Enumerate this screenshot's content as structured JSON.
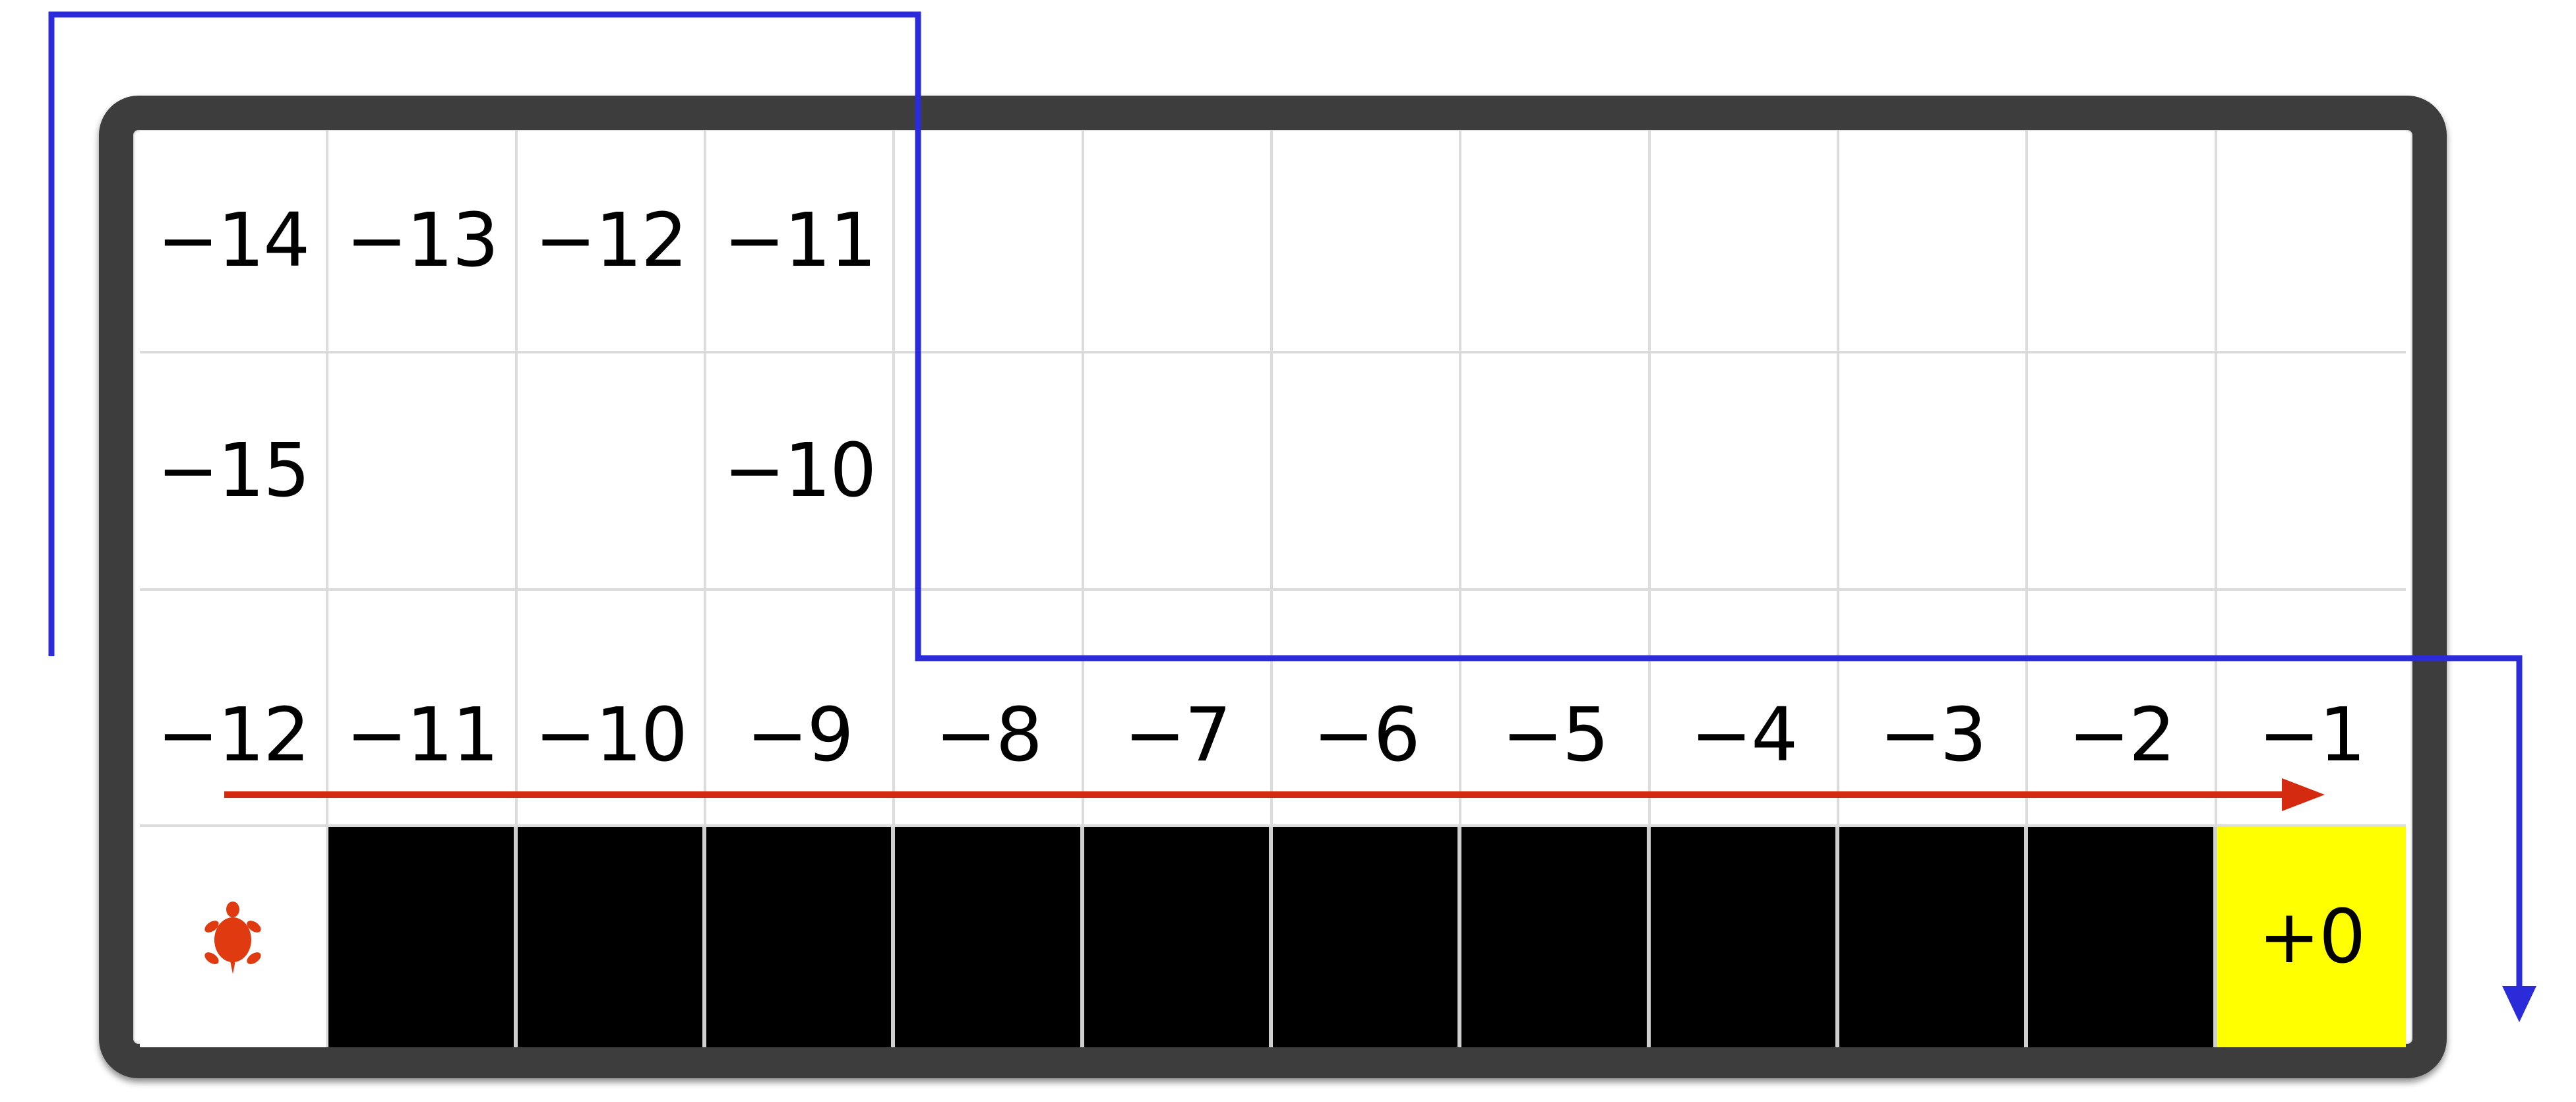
{
  "grid": {
    "row1": [
      "−14",
      "−13",
      "−12",
      "−11",
      "",
      "",
      "",
      "",
      "",
      "",
      "",
      ""
    ],
    "row2": [
      "−15",
      "",
      "",
      "−10",
      "",
      "",
      "",
      "",
      "",
      "",
      "",
      ""
    ],
    "row3": [
      "−12",
      "−11",
      "−10",
      "−9",
      "−8",
      "−7",
      "−6",
      "−5",
      "−4",
      "−3",
      "−2",
      "−1"
    ],
    "row4_end_label": "+0"
  },
  "icons": {
    "turtle": "turtle-icon",
    "red_arrow": "right-arrow-icon",
    "blue_path": "path-arrow-icon"
  },
  "colors": {
    "red_arrow": "#d42a10",
    "blue_path": "#2b2bd9",
    "black_cell": "#000000",
    "yellow_cell": "#ffff00",
    "turtle": "#e03a10"
  }
}
